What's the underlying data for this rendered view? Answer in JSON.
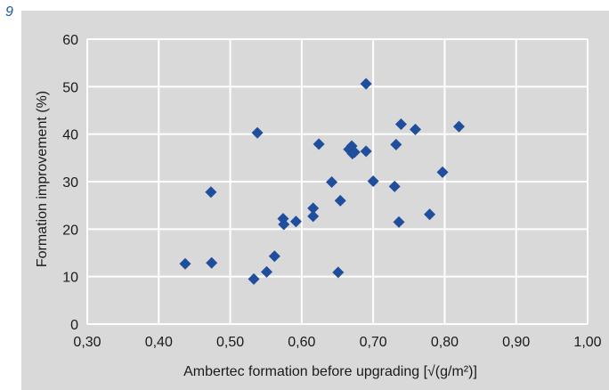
{
  "figure_number": "9",
  "chart_data": {
    "type": "scatter",
    "xlabel": "Ambertec formation before upgrading [√(g/m²)]",
    "ylabel": "Formation improvement (%)",
    "xlim": [
      0.3,
      1.0
    ],
    "ylim": [
      0,
      60
    ],
    "x_ticks": [
      "0,30",
      "0,40",
      "0,50",
      "0,60",
      "0,70",
      "0,80",
      "0,90",
      "1,00"
    ],
    "y_ticks": [
      "0",
      "10",
      "20",
      "30",
      "40",
      "50",
      "60"
    ],
    "grid": true,
    "marker_color": "#1f4e9c",
    "grid_color": "#ffffff",
    "panel_color": "#d9d9d9",
    "points": [
      {
        "x": 0.437,
        "y": 12.7
      },
      {
        "x": 0.473,
        "y": 27.8
      },
      {
        "x": 0.474,
        "y": 12.9
      },
      {
        "x": 0.533,
        "y": 9.5
      },
      {
        "x": 0.538,
        "y": 40.3
      },
      {
        "x": 0.551,
        "y": 11.0
      },
      {
        "x": 0.562,
        "y": 14.3
      },
      {
        "x": 0.574,
        "y": 22.2
      },
      {
        "x": 0.575,
        "y": 21.0
      },
      {
        "x": 0.592,
        "y": 21.6
      },
      {
        "x": 0.616,
        "y": 24.4
      },
      {
        "x": 0.616,
        "y": 22.7
      },
      {
        "x": 0.624,
        "y": 37.9
      },
      {
        "x": 0.642,
        "y": 29.9
      },
      {
        "x": 0.651,
        "y": 10.9
      },
      {
        "x": 0.654,
        "y": 26.0
      },
      {
        "x": 0.666,
        "y": 36.8
      },
      {
        "x": 0.67,
        "y": 37.5
      },
      {
        "x": 0.671,
        "y": 35.9
      },
      {
        "x": 0.674,
        "y": 36.2
      },
      {
        "x": 0.69,
        "y": 50.6
      },
      {
        "x": 0.69,
        "y": 36.4
      },
      {
        "x": 0.7,
        "y": 30.1
      },
      {
        "x": 0.73,
        "y": 29.0
      },
      {
        "x": 0.732,
        "y": 37.8
      },
      {
        "x": 0.736,
        "y": 21.5
      },
      {
        "x": 0.739,
        "y": 42.1
      },
      {
        "x": 0.759,
        "y": 41.0
      },
      {
        "x": 0.779,
        "y": 23.1
      },
      {
        "x": 0.797,
        "y": 32.0
      },
      {
        "x": 0.82,
        "y": 41.6
      }
    ]
  }
}
